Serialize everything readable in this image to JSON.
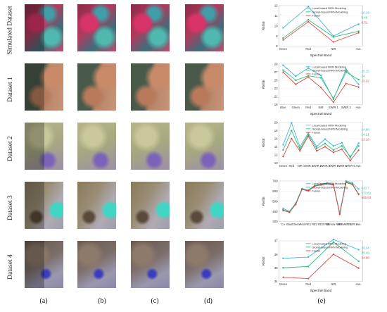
{
  "row_labels": [
    "Simulated Dataset",
    "Dataset 1",
    "Dataset 2",
    "Dataset 3",
    "Dataset 4"
  ],
  "column_labels": [
    "(a)",
    "(b)",
    "(c)",
    "(d)",
    "(e)"
  ],
  "colors": {
    "local": "#3fb8c9",
    "global": "#2fbf7a",
    "fusion": "#e0433e"
  },
  "legend": [
    "Local-based RRN Modeling",
    "Global-based RRN Modeling",
    "Fusion"
  ],
  "chart_data": [
    {
      "type": "line",
      "xlabel": "Spectral Band",
      "ylabel": "RMSE",
      "categories": [
        "Green",
        "Red",
        "NIR",
        "Ave."
      ],
      "ylim": [
        8,
        12
      ],
      "yticks": [
        "8",
        "9",
        "10",
        "11",
        "12"
      ],
      "series": [
        {
          "name": "Local-based RRN Modeling",
          "values": [
            9.8,
            11.9,
            9.0,
            10.18
          ]
        },
        {
          "name": "Global-based RRN Modeling",
          "values": [
            8.8,
            10.6,
            8.9,
            9.46
          ]
        },
        {
          "name": "Fusion",
          "values": [
            8.6,
            10.4,
            8.4,
            9.31
          ]
        }
      ],
      "annotations": [
        "10.18",
        "9.46",
        "9.31"
      ]
    },
    {
      "type": "line",
      "xlabel": "Spectral Band",
      "ylabel": "RMSE",
      "categories": [
        "Blue",
        "Green",
        "Red",
        "NIR",
        "SWIR 1",
        "SWIR 2",
        "Ave."
      ],
      "ylim": [
        19,
        29
      ],
      "yticks": [
        "19",
        "21",
        "23",
        "25",
        "27",
        "29"
      ],
      "series": [
        {
          "name": "Local-based RRN Modeling",
          "values": [
            28.7,
            26.0,
            28.0,
            26.2,
            20.3,
            27.7,
            24.0
          ]
        },
        {
          "name": "Global-based RRN Modeling",
          "values": [
            27.5,
            25.0,
            26.1,
            25.6,
            20.5,
            27.0,
            25.15
          ]
        },
        {
          "name": "Fusion",
          "values": [
            27.0,
            24.0,
            25.8,
            23.2,
            19.6,
            24.2,
            23.32
          ]
        }
      ],
      "annotations": [
        "25.15",
        "24",
        "23.32"
      ]
    },
    {
      "type": "line",
      "xlabel": "",
      "ylabel": "RMSE",
      "categories": [
        "Green",
        "Red",
        "NIR",
        "SWIR 1",
        "SWIR 2",
        "SWIR 3",
        "SWIR 4",
        "SWIR 5",
        "SWIR 6",
        "Ave."
      ],
      "ylim": [
        10,
        20
      ],
      "yticks": [
        "10",
        "12",
        "14",
        "16",
        "18",
        "20"
      ],
      "series": [
        {
          "name": "Local-based RRN Modeling",
          "values": [
            14.5,
            19.9,
            14.0,
            17.4,
            14.1,
            15.9,
            14.2,
            15.0,
            11.3,
            14.88
          ]
        },
        {
          "name": "Global-based RRN Modeling",
          "values": [
            13.2,
            18.0,
            13.4,
            17.0,
            13.6,
            14.8,
            13.2,
            14.2,
            11.6,
            14.21
          ]
        },
        {
          "name": "Fusion",
          "values": [
            11.6,
            16.0,
            13.0,
            16.6,
            13.0,
            14.0,
            12.6,
            13.4,
            10.6,
            13.18
          ]
        }
      ],
      "annotations": [
        "14.88",
        "14.21",
        "13.18"
      ]
    },
    {
      "type": "line",
      "xlabel": "",
      "ylabel": "RMSE",
      "categories": [
        "CA",
        "Blue",
        "Green",
        "Red",
        "RE1",
        "RE2",
        "RE3",
        "NIR",
        "Narrow NIR",
        "WV",
        "SWIR 1",
        "SWIR 2",
        "Ave."
      ],
      "ylim": [
        300,
        700
      ],
      "yticks": [
        "300",
        "400",
        "500",
        "600",
        "700"
      ],
      "series": [
        {
          "name": "Local-based RRN Modeling",
          "values": [
            428,
            400,
            480,
            625,
            610,
            655,
            668,
            680,
            668,
            385,
            700,
            680,
            620.7
          ]
        },
        {
          "name": "Global-based RRN Modeling",
          "values": [
            415,
            395,
            472,
            618,
            605,
            650,
            663,
            676,
            664,
            378,
            692,
            672,
            572.61
          ]
        },
        {
          "name": "Fusion",
          "values": [
            408,
            390,
            468,
            615,
            602,
            648,
            660,
            672,
            660,
            370,
            685,
            665,
            565.93
          ]
        }
      ],
      "annotations": [
        "620.7",
        "572.61",
        "565.93"
      ]
    },
    {
      "type": "line",
      "xlabel": "Spectral Band",
      "ylabel": "RMSE",
      "categories": [
        "Green",
        "Red",
        "NIR",
        "Ave."
      ],
      "ylim": [
        34,
        37
      ],
      "yticks": [
        "34",
        "35",
        "36",
        "37"
      ],
      "series": [
        {
          "name": "Local-based RRN Modeling",
          "values": [
            35.7,
            35.8,
            37.1,
            36.34
          ]
        },
        {
          "name": "Global-based RRN Modeling",
          "values": [
            35.0,
            35.1,
            36.9,
            35.49
          ]
        },
        {
          "name": "Fusion",
          "values": [
            34.3,
            34.2,
            36.0,
            34.98
          ]
        }
      ],
      "annotations": [
        "36.34",
        "35.49",
        "34.98"
      ]
    }
  ]
}
